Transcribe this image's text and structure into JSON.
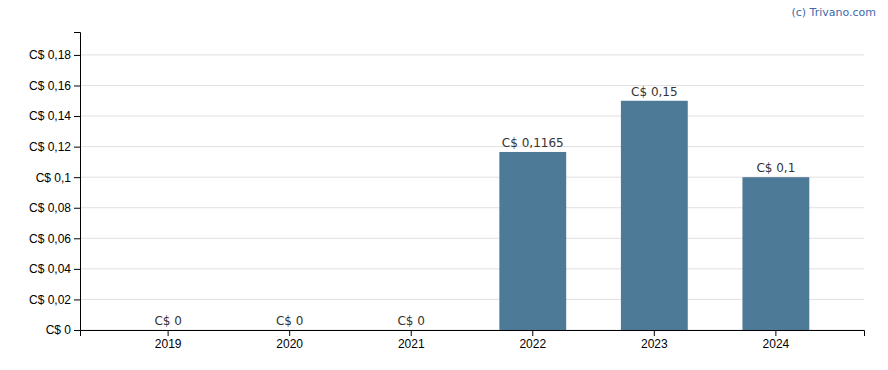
{
  "chart_data": {
    "type": "bar",
    "categories": [
      "2019",
      "2020",
      "2021",
      "2022",
      "2023",
      "2024"
    ],
    "values": [
      0,
      0,
      0,
      0.1165,
      0.15,
      0.1
    ],
    "value_labels": [
      "C$ 0",
      "C$ 0",
      "C$ 0",
      "C$ 0,1165",
      "C$ 0,15",
      "C$ 0,1"
    ],
    "data_labels": true,
    "color": "#4d7a96",
    "ylim": [
      0,
      0.195
    ],
    "yticks": [
      {
        "value": 0,
        "label": "C$ 0"
      },
      {
        "value": 0.02,
        "label": "C$ 0,02"
      },
      {
        "value": 0.04,
        "label": "C$ 0,04"
      },
      {
        "value": 0.06,
        "label": "C$ 0,06"
      },
      {
        "value": 0.08,
        "label": "C$ 0,08"
      },
      {
        "value": 0.1,
        "label": "C$ 0,1"
      },
      {
        "value": 0.12,
        "label": "C$ 0,12"
      },
      {
        "value": 0.14,
        "label": "C$ 0,14"
      },
      {
        "value": 0.16,
        "label": "C$ 0,16"
      },
      {
        "value": 0.18,
        "label": "C$ 0,18"
      }
    ],
    "grid": true,
    "annotations": [
      {
        "text": "(c) Trivano.com",
        "color": "#4169aa"
      }
    ]
  }
}
